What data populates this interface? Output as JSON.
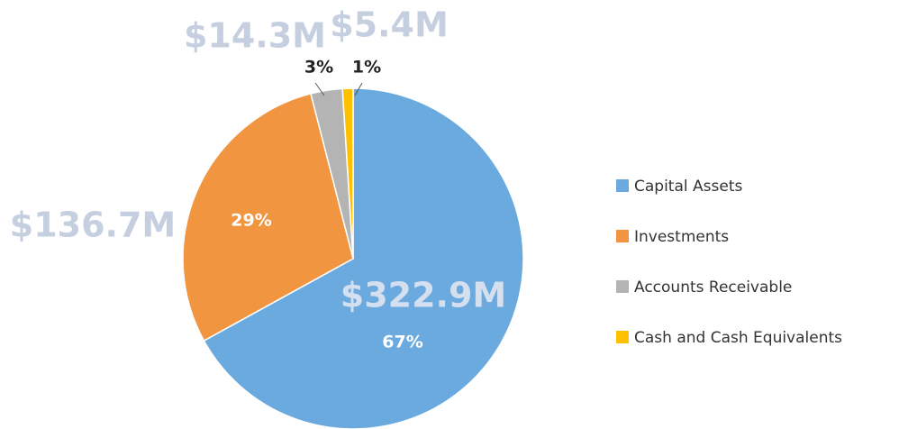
{
  "chart_data": {
    "type": "pie",
    "categories": [
      "Capital Assets",
      "Investments",
      "Accounts Receivable",
      "Cash and Cash Equivalents"
    ],
    "values": [
      67,
      29,
      3,
      1
    ],
    "value_labels": [
      "67%",
      "29%",
      "3%",
      "1%"
    ],
    "amount_labels": [
      "$322.9M",
      "$136.7M",
      "$14.3M",
      "$5.4M"
    ],
    "colors": [
      "#6aaade",
      "#f29540",
      "#b4b4b4",
      "#ffc000"
    ],
    "legend": "right"
  }
}
